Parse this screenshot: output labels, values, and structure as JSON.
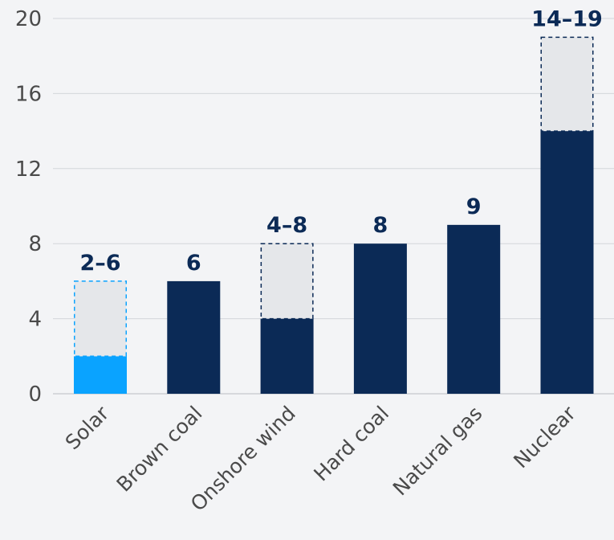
{
  "chart_data": {
    "type": "bar",
    "title": "",
    "xlabel": "",
    "ylabel": "",
    "ylim": [
      0,
      20
    ],
    "yticks": [
      0,
      4,
      8,
      12,
      16,
      20
    ],
    "grid": true,
    "categories": [
      "Solar",
      "Brown coal",
      "Onshore wind",
      "Hard coal",
      "Natural gas",
      "Nuclear"
    ],
    "low": [
      2,
      6,
      4,
      8,
      9,
      14
    ],
    "high": [
      6,
      6,
      8,
      8,
      9,
      19
    ],
    "labels": [
      "2–6",
      "6",
      "4–8",
      "8",
      "9",
      "14–19"
    ],
    "colors": {
      "highlight": "#0aa3ff",
      "bar": "#0b2a56",
      "range_fill": "#e5e7ea",
      "grid": "#d3d6da"
    },
    "highlight_category": "Solar"
  }
}
